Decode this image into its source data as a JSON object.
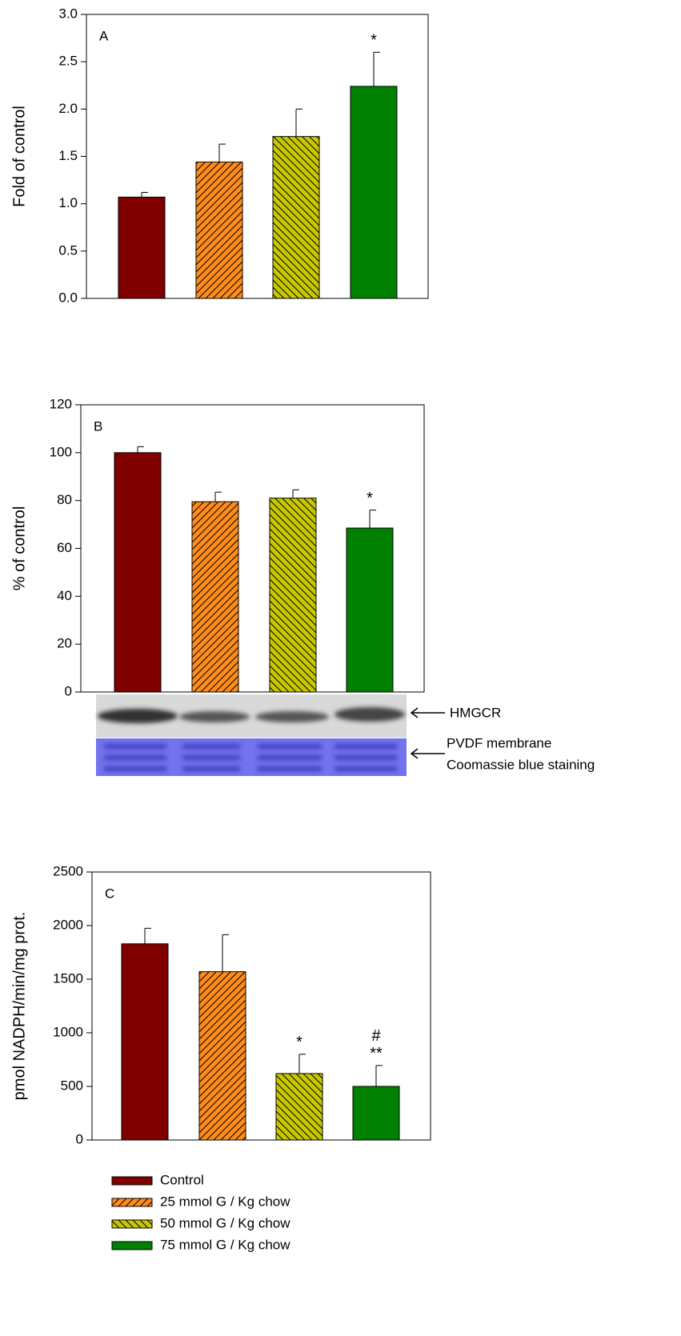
{
  "chart_data": [
    {
      "type": "bar",
      "panel": "A",
      "ylabel": "Fold of control",
      "values": [
        1.07,
        1.44,
        1.71,
        2.24
      ],
      "errors": [
        0.05,
        0.19,
        0.29,
        0.36
      ],
      "annotations": [
        [],
        [],
        [],
        [
          "*"
        ]
      ],
      "ylim": [
        0,
        3
      ],
      "yticks": [
        {
          "value": 0,
          "label": "0.0"
        },
        {
          "value": 0.5,
          "label": "0.5"
        },
        {
          "value": 1,
          "label": "1.0"
        },
        {
          "value": 1.5,
          "label": "1.5"
        },
        {
          "value": 2,
          "label": "2.0"
        },
        {
          "value": 2.5,
          "label": "2.5"
        },
        {
          "value": 3,
          "label": "3.0"
        }
      ]
    },
    {
      "type": "bar",
      "panel": "B",
      "ylabel": "% of control",
      "values": [
        100,
        79.5,
        81,
        68.5
      ],
      "errors": [
        2.5,
        4,
        3.5,
        7.5
      ],
      "annotations": [
        [],
        [],
        [],
        [
          "*"
        ]
      ],
      "ylim": [
        0,
        120
      ],
      "yticks": [
        0,
        20,
        40,
        60,
        80,
        100,
        120
      ],
      "blot_labels": [
        "HMGCR",
        "PVDF membrane",
        "Coomassie blue staining"
      ]
    },
    {
      "type": "bar",
      "panel": "C",
      "ylabel": "pmol NADPH/min/mg prot.",
      "values": [
        1830,
        1570,
        620,
        500
      ],
      "errors": [
        145,
        345,
        180,
        195
      ],
      "annotations": [
        [],
        [],
        [
          "*"
        ],
        [
          "#",
          "**"
        ]
      ],
      "ylim": [
        0,
        2500
      ],
      "yticks": [
        0,
        500,
        1000,
        1500,
        2000,
        2500
      ]
    }
  ],
  "legend": {
    "entries": [
      {
        "name": "Control",
        "color": "#800000",
        "hatch": "none"
      },
      {
        "name": "25 mmol G / Kg chow",
        "color": "#ff8c1a",
        "hatch": "/"
      },
      {
        "name": "50 mmol G / Kg chow",
        "color": "#c8c800",
        "hatch": "\\"
      },
      {
        "name": "75 mmol G / Kg chow",
        "color": "#008000",
        "hatch": "none"
      }
    ]
  }
}
